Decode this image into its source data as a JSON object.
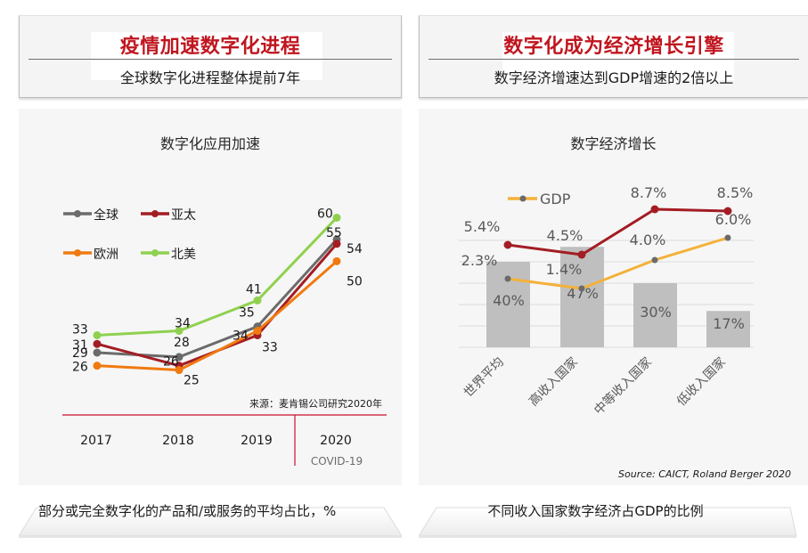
{
  "left": {
    "header": {
      "title": "疫情加速数字化进程",
      "subtitle": "全球数字化进程整体提前7年"
    },
    "footer": "部分或完全数字化的产品和/或服务的平均占比，%"
  },
  "right": {
    "header": {
      "title": "数字化成为经济增长引擎",
      "subtitle": "数字经济增速达到GDP增速的2倍以上"
    },
    "footer": "不同收入国家数字经济占GDP的比例"
  },
  "chart_data": [
    {
      "type": "line",
      "title": "数字化应用加速",
      "x": [
        "2017",
        "2018",
        "2019",
        "2020"
      ],
      "x_sublabels": {
        "2020": "COVID-19"
      },
      "series": [
        {
          "name": "全球",
          "color": "#6b6b6b",
          "values": [
            29,
            28,
            35,
            55
          ]
        },
        {
          "name": "亚太",
          "color": "#a31d24",
          "values": [
            31,
            26,
            33,
            54
          ]
        },
        {
          "name": "欧洲",
          "color": "#f07a10",
          "values": [
            26,
            25,
            34,
            50
          ]
        },
        {
          "name": "北美",
          "color": "#8fd14f",
          "values": [
            33,
            34,
            41,
            60
          ]
        }
      ],
      "legend_position": "top-left",
      "ylim": [
        20,
        65
      ],
      "grid": false,
      "annotation": "来源：麦肯锡公司研究2020年",
      "axis_color": "#c8102e"
    },
    {
      "type": "bar+line",
      "title": "数字经济增长",
      "categories": [
        "世界平均",
        "高收入国家",
        "中等收入国家",
        "低收入国家"
      ],
      "bar_series": {
        "name": "数字经济占GDP比例",
        "color": "#bfbfbf",
        "values": [
          40,
          47,
          30,
          17
        ],
        "labels": [
          "40%",
          "47%",
          "30%",
          "17%"
        ]
      },
      "line_series": [
        {
          "name": "数字经济增速",
          "color": "#a31d24",
          "values": [
            5.4,
            4.5,
            8.7,
            8.5
          ],
          "labels": [
            "5.4%",
            "4.5%",
            "8.7%",
            "8.5%"
          ]
        },
        {
          "name": "GDP",
          "color": "#f4b13a",
          "values": [
            2.3,
            1.4,
            4.0,
            6.0
          ],
          "labels": [
            "2.3%",
            "1.4%",
            "4.0%",
            "6.0%"
          ]
        }
      ],
      "legend": [
        "GDP"
      ],
      "legend_position": "top-left",
      "bar_ylim": [
        0,
        60
      ],
      "line_ylim": [
        -5,
        10
      ],
      "grid": true,
      "source": "Source:  CAICT, Roland Berger 2020"
    }
  ]
}
